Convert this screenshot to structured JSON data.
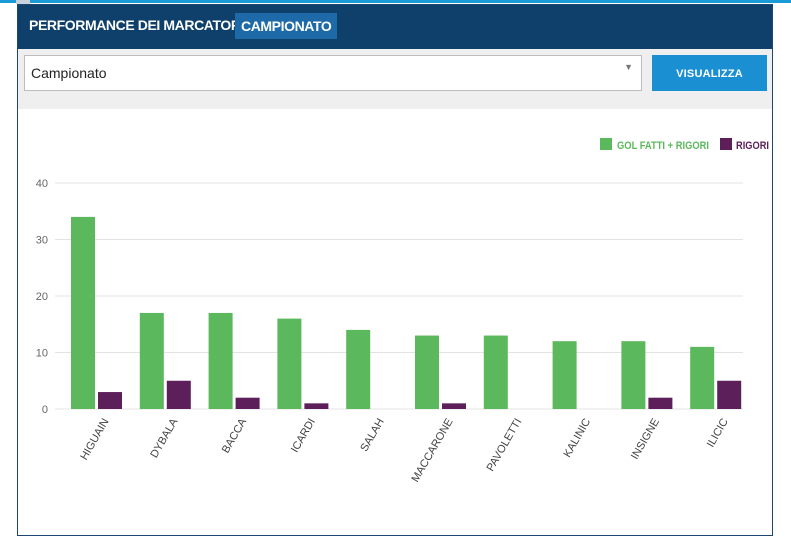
{
  "header": {
    "title": "PERFORMANCE DEI MARCATORI IN",
    "badge": "CAMPIONATO"
  },
  "controls": {
    "select_value": "Campionato",
    "button_label": "VISUALIZZA"
  },
  "colors": {
    "header_bg": "#0e406b",
    "badge_bg": "#1e6aa8",
    "button_bg": "#1a8fd1",
    "green": "#5cb85c",
    "purple": "#5d1f5a"
  },
  "chart_data": {
    "type": "bar",
    "categories": [
      "HIGUAIN",
      "DYBALA",
      "BACCA",
      "ICARDI",
      "SALAH",
      "MACCARONE",
      "PAVOLETTI",
      "KALINIC",
      "INSIGNE",
      "ILICIC"
    ],
    "series": [
      {
        "name": "GOL FATTI + RIGORI",
        "color": "#5cb85c",
        "values": [
          34,
          17,
          17,
          16,
          14,
          13,
          13,
          12,
          12,
          11
        ]
      },
      {
        "name": "RIGORI",
        "color": "#5d1f5a",
        "values": [
          3,
          5,
          2,
          1,
          0,
          1,
          0,
          0,
          2,
          5
        ]
      }
    ],
    "yticks": [
      0,
      10,
      20,
      30,
      40
    ],
    "ylim": [
      0,
      40
    ],
    "grid": true,
    "legend_position": "top-right",
    "title": "",
    "xlabel": "",
    "ylabel": ""
  }
}
